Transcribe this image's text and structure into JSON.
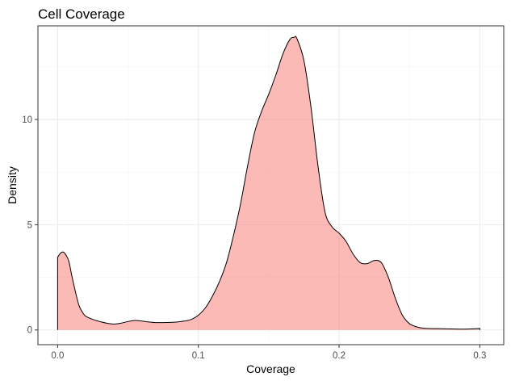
{
  "chart_data": {
    "type": "area",
    "title": "Cell Coverage",
    "xlabel": "Coverage",
    "ylabel": "Density",
    "xlim": [
      -0.014,
      0.317
    ],
    "ylim": [
      -0.7,
      14.45
    ],
    "x_ticks": [
      0.0,
      0.1,
      0.2,
      0.3
    ],
    "x_tick_labels": [
      "0.0",
      "0.1",
      "0.2",
      "0.3"
    ],
    "y_ticks": [
      0,
      5,
      10
    ],
    "y_tick_labels": [
      "0",
      "5",
      "10"
    ],
    "grid": true,
    "legend": "none",
    "colors": {
      "fill": "#F8766D",
      "fill_opacity": 0.5,
      "line": "#000000"
    },
    "series": [
      {
        "x": [
          0.0,
          0.002,
          0.004,
          0.006,
          0.008,
          0.01,
          0.012,
          0.015,
          0.018,
          0.02,
          0.025,
          0.03,
          0.035,
          0.04,
          0.045,
          0.05,
          0.055,
          0.06,
          0.065,
          0.07,
          0.075,
          0.08,
          0.085,
          0.09,
          0.095,
          0.1,
          0.105,
          0.11,
          0.115,
          0.12,
          0.125,
          0.13,
          0.135,
          0.14,
          0.145,
          0.15,
          0.155,
          0.16,
          0.165,
          0.168,
          0.17,
          0.175,
          0.18,
          0.185,
          0.19,
          0.195,
          0.2,
          0.205,
          0.21,
          0.215,
          0.22,
          0.225,
          0.23,
          0.235,
          0.24,
          0.245,
          0.25,
          0.255,
          0.26,
          0.27,
          0.28,
          0.29,
          0.3
        ],
        "y": [
          3.45,
          3.65,
          3.7,
          3.55,
          3.25,
          2.6,
          2.0,
          1.2,
          0.8,
          0.65,
          0.5,
          0.4,
          0.32,
          0.28,
          0.32,
          0.4,
          0.45,
          0.42,
          0.38,
          0.35,
          0.35,
          0.36,
          0.38,
          0.42,
          0.5,
          0.7,
          1.05,
          1.6,
          2.3,
          3.2,
          4.5,
          6.0,
          7.8,
          9.4,
          10.4,
          11.2,
          12.1,
          13.1,
          13.8,
          13.9,
          13.85,
          12.8,
          10.6,
          7.8,
          5.6,
          4.9,
          4.6,
          4.2,
          3.6,
          3.2,
          3.15,
          3.3,
          3.2,
          2.5,
          1.5,
          0.7,
          0.3,
          0.15,
          0.08,
          0.06,
          0.05,
          0.04,
          0.07
        ]
      }
    ]
  }
}
